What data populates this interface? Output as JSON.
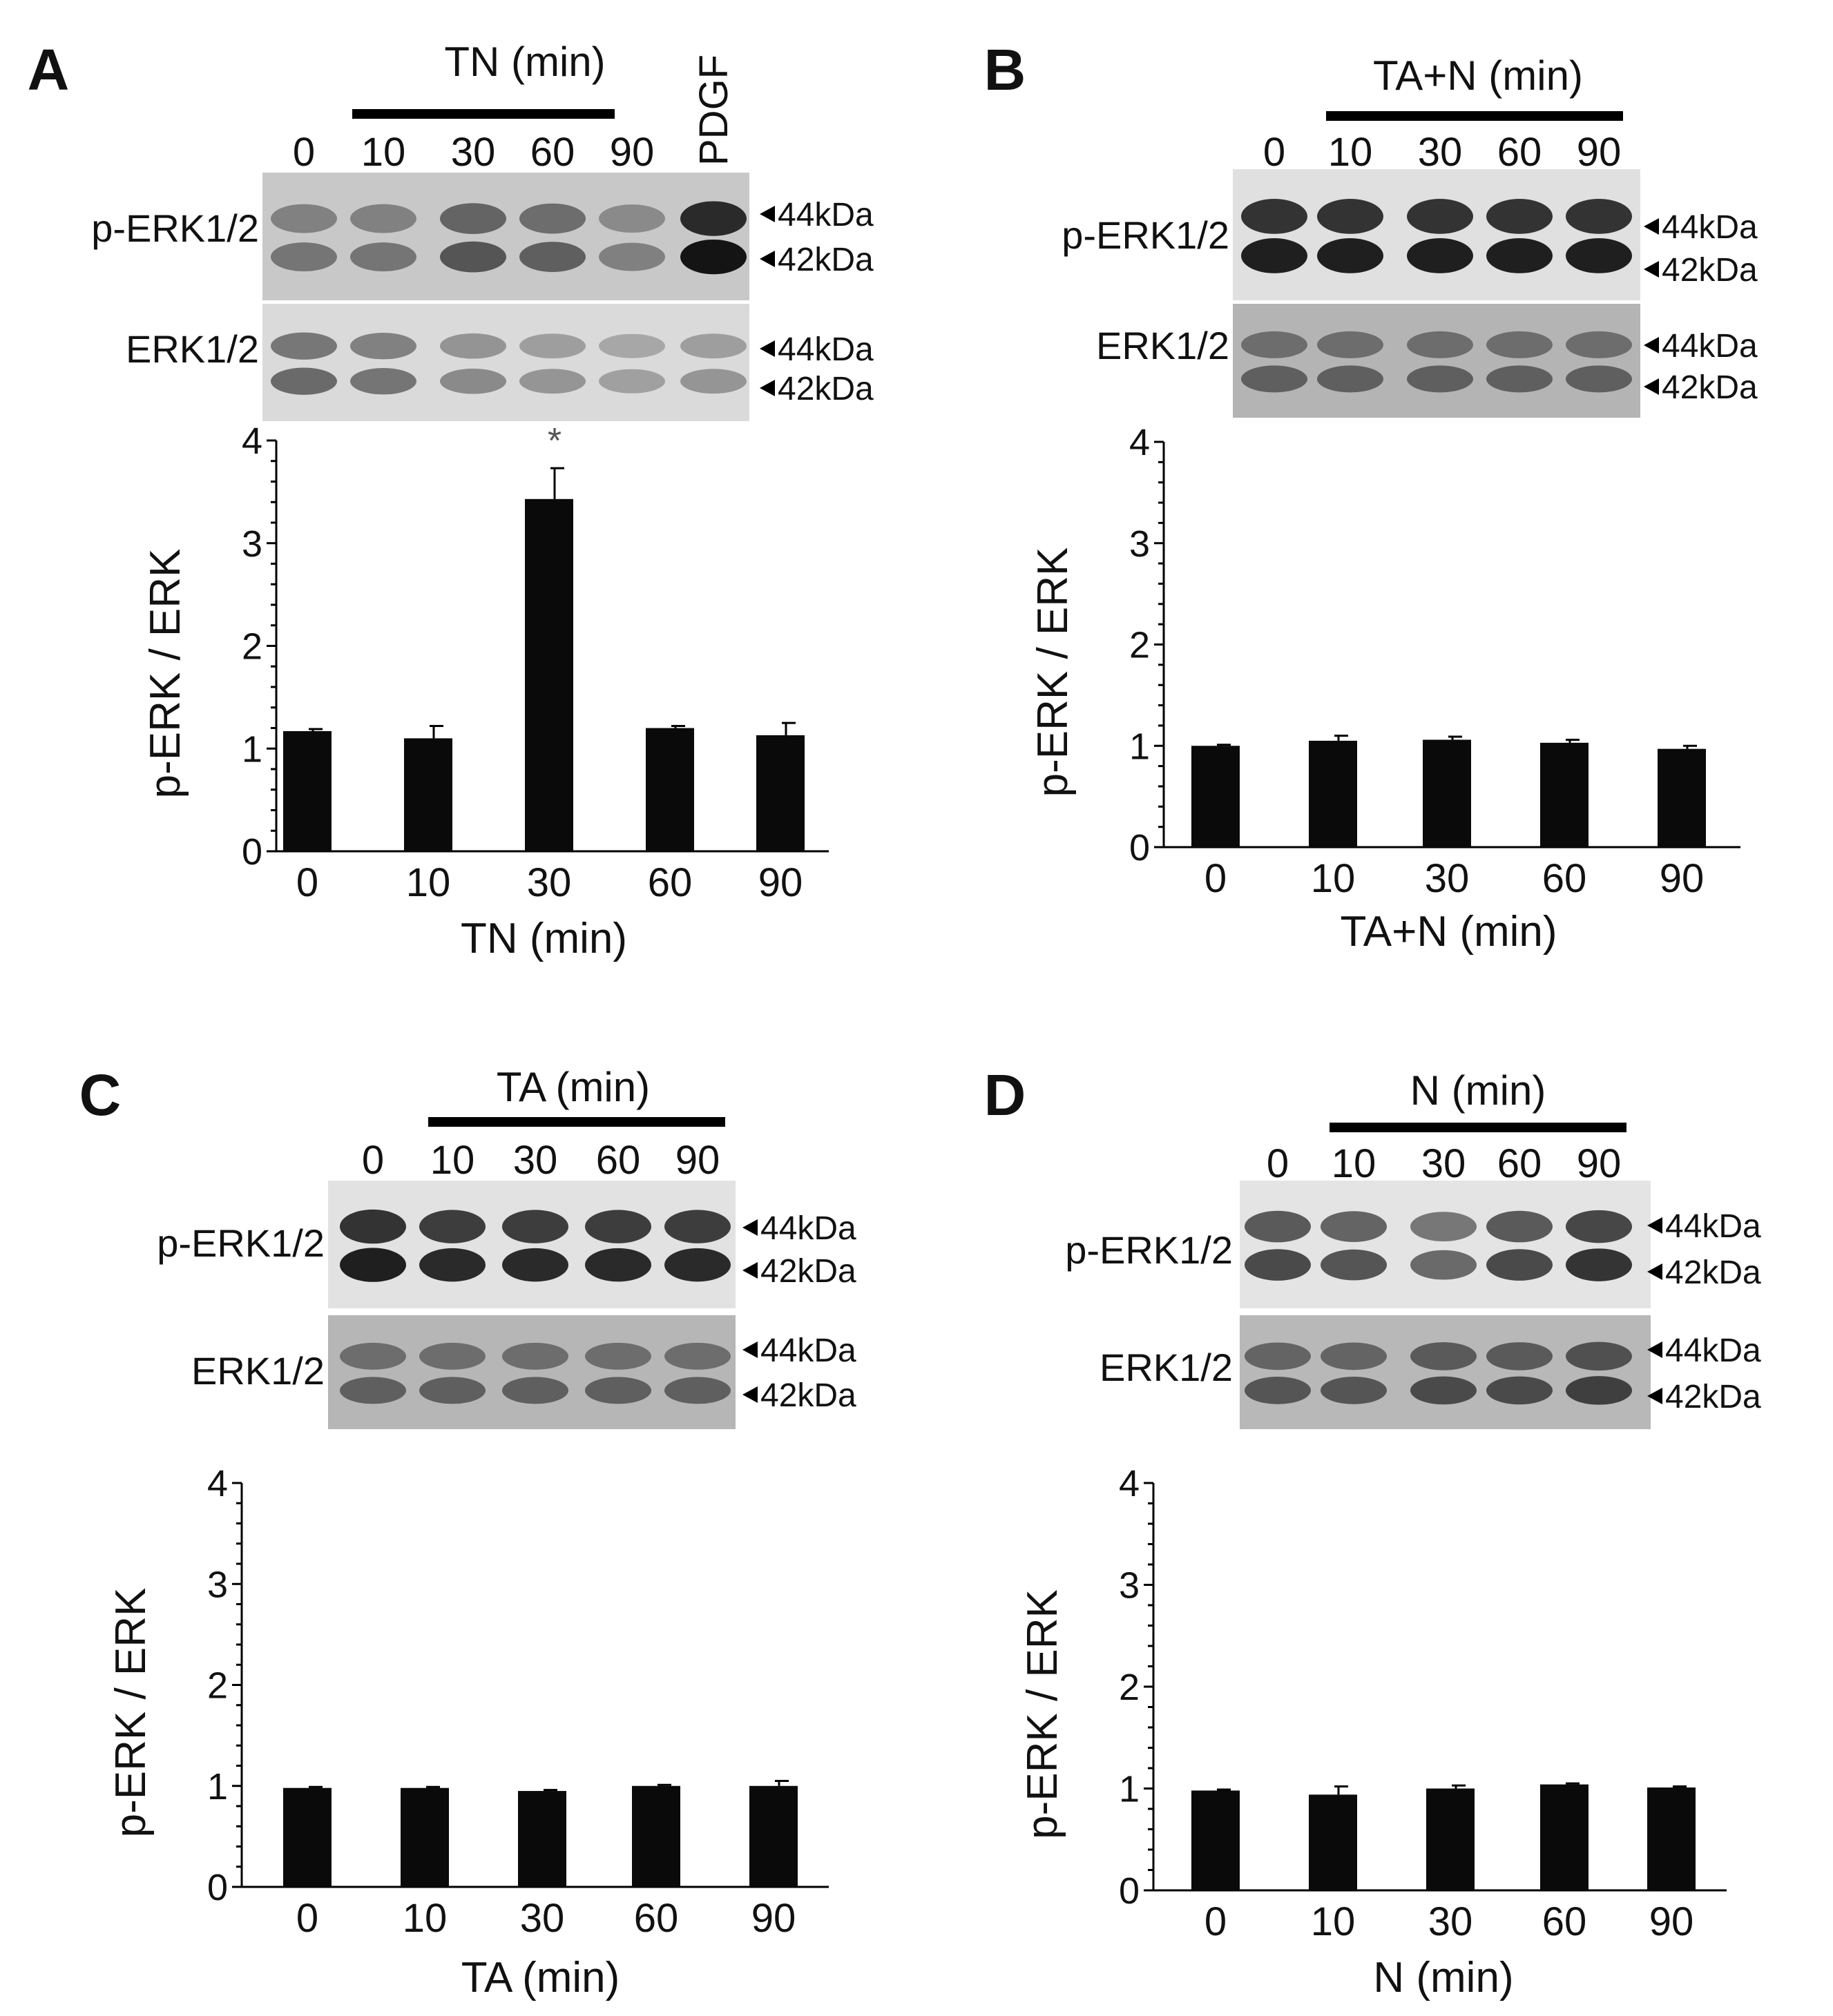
{
  "ui": {
    "p_label": "p-ERK1/2",
    "t_label": "ERK1/2"
  },
  "colors": {
    "bar": "#0a0a0a",
    "blot_bg": "#d4d4d4",
    "band": "#1a1a1a"
  },
  "panels": [
    {
      "letter": "A",
      "header": "TN (min)",
      "lanes": [
        "0",
        "10",
        "30",
        "60",
        "90"
      ],
      "extra_lane": "PDGF",
      "kda_top": "44kDa",
      "kda_bottom": "42kDa",
      "p_band_intensity": [
        0.55,
        0.55,
        0.7,
        0.65,
        0.5,
        1.0
      ],
      "t_band_intensity": [
        0.6,
        0.55,
        0.45,
        0.4,
        0.35,
        0.4
      ],
      "p_blot_bg": "#c8c8c8",
      "t_blot_bg": "#dadada"
    },
    {
      "letter": "B",
      "header": "TA+N (min)",
      "lanes": [
        "0",
        "10",
        "30",
        "60",
        "90"
      ],
      "kda_top": "44kDa",
      "kda_bottom": "42kDa",
      "p_band_intensity": [
        0.95,
        0.95,
        0.95,
        0.95,
        0.95
      ],
      "t_band_intensity": [
        0.65,
        0.65,
        0.65,
        0.65,
        0.65
      ],
      "p_blot_bg": "#e0e0e0",
      "t_blot_bg": "#b4b4b4"
    },
    {
      "letter": "C",
      "header": "TA (min)",
      "lanes": [
        "0",
        "10",
        "30",
        "60",
        "90"
      ],
      "kda_top": "44kDa",
      "kda_bottom": "42kDa",
      "p_band_intensity": [
        0.95,
        0.9,
        0.9,
        0.9,
        0.9
      ],
      "t_band_intensity": [
        0.65,
        0.65,
        0.65,
        0.65,
        0.65
      ],
      "p_blot_bg": "#e2e2e2",
      "t_blot_bg": "#b6b6b6"
    },
    {
      "letter": "D",
      "header": "N (min)",
      "lanes": [
        "0",
        "10",
        "30",
        "60",
        "90"
      ],
      "kda_top": "44kDa",
      "kda_bottom": "42kDa",
      "p_band_intensity": [
        0.75,
        0.7,
        0.6,
        0.75,
        0.85
      ],
      "t_band_intensity": [
        0.7,
        0.7,
        0.75,
        0.75,
        0.8
      ],
      "p_blot_bg": "#e4e4e4",
      "t_blot_bg": "#b8b8b8"
    }
  ],
  "chart_data": [
    {
      "type": "bar",
      "panel": "A",
      "categories": [
        "0",
        "10",
        "30",
        "60",
        "90"
      ],
      "values": [
        1.17,
        1.1,
        3.43,
        1.2,
        1.13
      ],
      "errors": [
        0.02,
        0.12,
        0.3,
        0.02,
        0.12
      ],
      "annotations": [
        {
          "category": "30",
          "text": "*"
        }
      ],
      "xlabel": "TN (min)",
      "ylabel": "p-ERK / ERK",
      "ylim": [
        0,
        4
      ],
      "yticks": [
        0,
        1,
        2,
        3,
        4
      ],
      "grid": false
    },
    {
      "type": "bar",
      "panel": "B",
      "categories": [
        "0",
        "10",
        "30",
        "60",
        "90"
      ],
      "values": [
        1.0,
        1.05,
        1.06,
        1.03,
        0.97
      ],
      "errors": [
        0.01,
        0.05,
        0.03,
        0.03,
        0.03
      ],
      "annotations": [],
      "xlabel": "TA+N (min)",
      "ylabel": "p-ERK / ERK",
      "ylim": [
        0,
        4
      ],
      "yticks": [
        0,
        1,
        2,
        3,
        4
      ],
      "grid": false
    },
    {
      "type": "bar",
      "panel": "C",
      "categories": [
        "0",
        "10",
        "30",
        "60",
        "90"
      ],
      "values": [
        0.98,
        0.98,
        0.95,
        1.0,
        1.0
      ],
      "errors": [
        0.01,
        0.01,
        0.01,
        0.01,
        0.05
      ],
      "annotations": [],
      "xlabel": "TA (min)",
      "ylabel": "p-ERK / ERK",
      "ylim": [
        0,
        4
      ],
      "yticks": [
        0,
        1,
        2,
        3,
        4
      ],
      "grid": false
    },
    {
      "type": "bar",
      "panel": "D",
      "categories": [
        "0",
        "10",
        "30",
        "60",
        "90"
      ],
      "values": [
        0.98,
        0.94,
        1.0,
        1.04,
        1.01
      ],
      "errors": [
        0.01,
        0.08,
        0.03,
        0.01,
        0.01
      ],
      "annotations": [],
      "xlabel": "N (min)",
      "ylabel": "p-ERK / ERK",
      "ylim": [
        0,
        4
      ],
      "yticks": [
        0,
        1,
        2,
        3,
        4
      ],
      "grid": false
    }
  ]
}
